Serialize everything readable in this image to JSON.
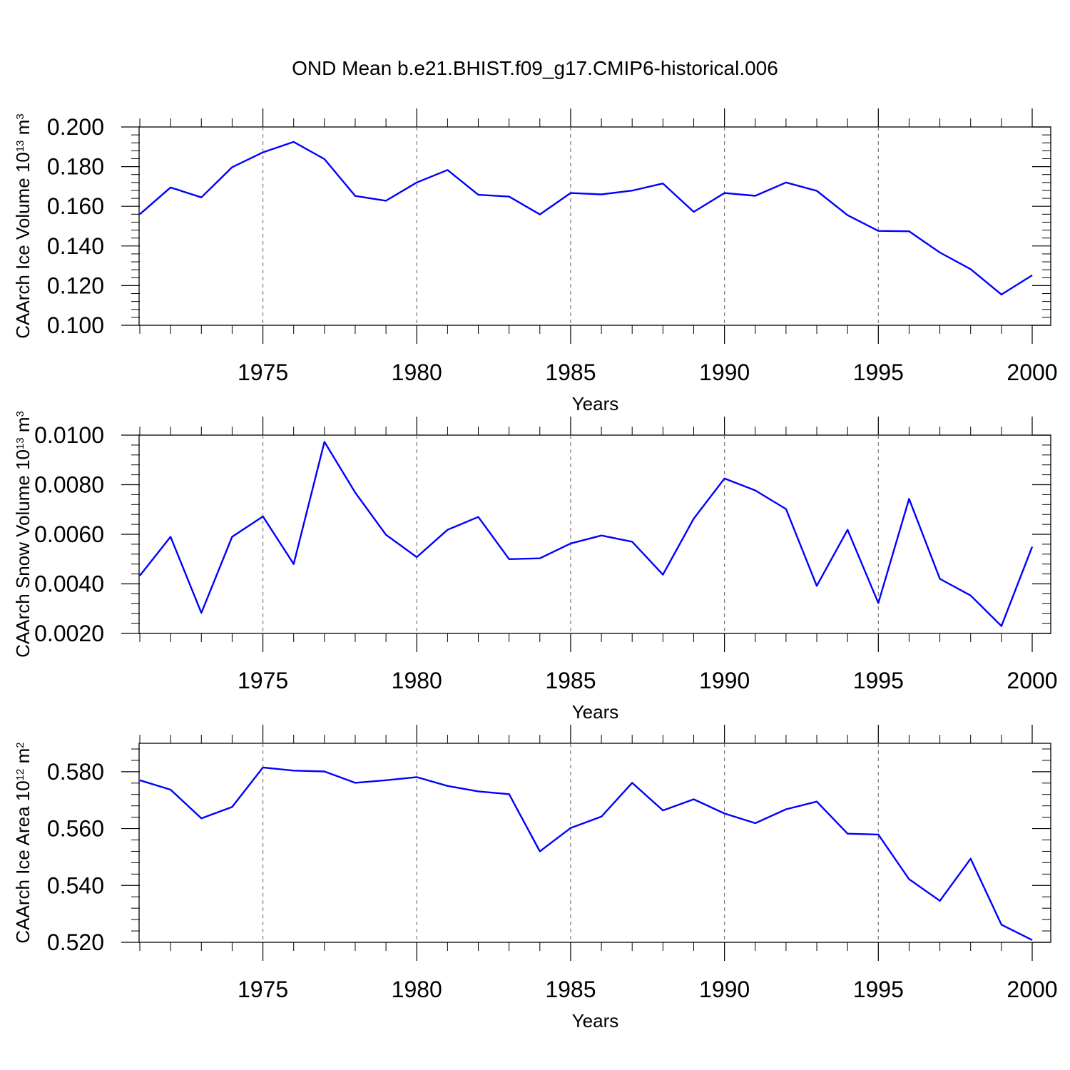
{
  "title": "OND Mean b.e21.BHIST.f09_g17.CMIP6-historical.006",
  "chart_data": [
    {
      "type": "line",
      "xlabel": "Years",
      "ylabel": {
        "main": "CAArch Ice Volume 10",
        "exp": "13",
        "unit": " m",
        "unit_exp": "3"
      },
      "xlim": [
        1971,
        2000
      ],
      "ylim": [
        0.1,
        0.2
      ],
      "xticks": [
        1975,
        1980,
        1985,
        1990,
        1995,
        2000
      ],
      "yticks": [
        0.1,
        0.12,
        0.14,
        0.16,
        0.18,
        0.2
      ],
      "ytick_labels": [
        "0.100",
        "0.120",
        "0.140",
        "0.160",
        "0.180",
        "0.200"
      ],
      "vertical_dashed_grid": true,
      "line_color": "#0000ff",
      "series": [
        {
          "x": [
            1971,
            1972,
            1973,
            1974,
            1975,
            1976,
            1977,
            1978,
            1979,
            1980,
            1981,
            1982,
            1983,
            1984,
            1985,
            1986,
            1987,
            1988,
            1989,
            1990,
            1991,
            1992,
            1993,
            1994,
            1995,
            1996,
            1997,
            1998,
            1999,
            2000
          ],
          "values": [
            0.156,
            0.1695,
            0.1645,
            0.1797,
            0.1872,
            0.1925,
            0.1838,
            0.1652,
            0.1628,
            0.172,
            0.1783,
            0.1658,
            0.1649,
            0.1559,
            0.1667,
            0.166,
            0.1679,
            0.1715,
            0.1572,
            0.1667,
            0.1653,
            0.172,
            0.1678,
            0.1555,
            0.1476,
            0.1474,
            0.1367,
            0.1283,
            0.1155,
            0.1252
          ]
        }
      ]
    },
    {
      "type": "line",
      "xlabel": "Years",
      "ylabel": {
        "main": "CAArch Snow Volume 10",
        "exp": "13",
        "unit": " m",
        "unit_exp": "3"
      },
      "xlim": [
        1971,
        2000
      ],
      "ylim": [
        0.002,
        0.01
      ],
      "xticks": [
        1975,
        1980,
        1985,
        1990,
        1995,
        2000
      ],
      "yticks": [
        0.002,
        0.004,
        0.006,
        0.008,
        0.01
      ],
      "ytick_labels": [
        "0.0020",
        "0.0040",
        "0.0060",
        "0.0080",
        "0.0100"
      ],
      "vertical_dashed_grid": true,
      "line_color": "#0000ff",
      "series": [
        {
          "x": [
            1971,
            1972,
            1973,
            1974,
            1975,
            1976,
            1977,
            1978,
            1979,
            1980,
            1981,
            1982,
            1983,
            1984,
            1985,
            1986,
            1987,
            1988,
            1989,
            1990,
            1991,
            1992,
            1993,
            1994,
            1995,
            1996,
            1997,
            1998,
            1999,
            2000
          ],
          "values": [
            0.00433,
            0.0059,
            0.00283,
            0.0059,
            0.00672,
            0.0048,
            0.00973,
            0.00768,
            0.00598,
            0.00508,
            0.00618,
            0.0067,
            0.005,
            0.00503,
            0.00563,
            0.00595,
            0.0057,
            0.00437,
            0.00663,
            0.00825,
            0.00777,
            0.00702,
            0.00392,
            0.00618,
            0.00323,
            0.00743,
            0.0042,
            0.00353,
            0.0023,
            0.0055
          ]
        }
      ]
    },
    {
      "type": "line",
      "xlabel": "Years",
      "ylabel": {
        "main": "CAArch Ice Area 10",
        "exp": "12",
        "unit": " m",
        "unit_exp": "2"
      },
      "xlim": [
        1971,
        2000
      ],
      "ylim": [
        0.52,
        0.59
      ],
      "xticks": [
        1975,
        1980,
        1985,
        1990,
        1995,
        2000
      ],
      "yticks": [
        0.52,
        0.54,
        0.56,
        0.58
      ],
      "ytick_labels": [
        "0.520",
        "0.540",
        "0.560",
        "0.580"
      ],
      "vertical_dashed_grid": true,
      "line_color": "#0000ff",
      "series": [
        {
          "x": [
            1971,
            1972,
            1973,
            1974,
            1975,
            1976,
            1977,
            1978,
            1979,
            1980,
            1981,
            1982,
            1983,
            1984,
            1985,
            1986,
            1987,
            1988,
            1989,
            1990,
            1991,
            1992,
            1993,
            1994,
            1995,
            1996,
            1997,
            1998,
            1999,
            2000
          ],
          "values": [
            0.577,
            0.5737,
            0.5636,
            0.5676,
            0.5815,
            0.5804,
            0.5801,
            0.5761,
            0.577,
            0.5781,
            0.575,
            0.5731,
            0.5721,
            0.552,
            0.5602,
            0.5642,
            0.5761,
            0.5664,
            0.5703,
            0.5653,
            0.5619,
            0.5668,
            0.5695,
            0.5582,
            0.5579,
            0.5422,
            0.5346,
            0.5494,
            0.5262,
            0.5208
          ]
        }
      ]
    }
  ]
}
